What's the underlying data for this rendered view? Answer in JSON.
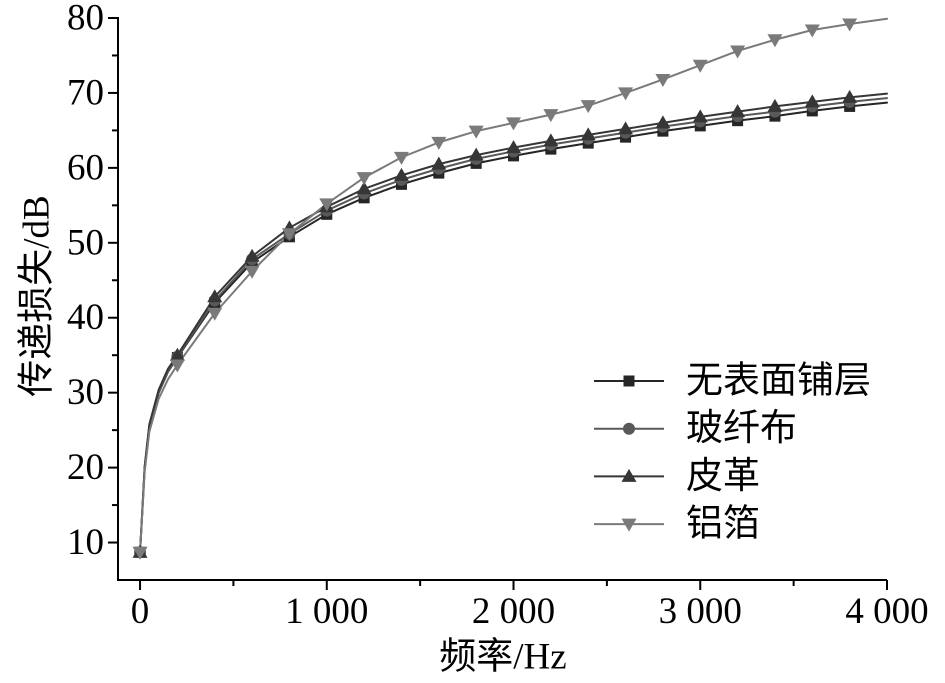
{
  "chart_data": {
    "type": "line",
    "xlabel": "频率/Hz",
    "ylabel": "传递损失/dB",
    "xlim": [
      -118,
      4000
    ],
    "ylim": [
      5,
      80
    ],
    "grid": false,
    "legend": "bottom-right",
    "x_ticks": {
      "values": [
        0,
        1000,
        2000,
        3000,
        4000
      ],
      "labels": [
        "0",
        "1 000",
        "2 000",
        "3 000",
        "4 000"
      ]
    },
    "y_ticks": {
      "values": [
        10,
        20,
        30,
        40,
        50,
        60,
        70,
        80
      ],
      "labels": [
        "10",
        "20",
        "30",
        "40",
        "50",
        "60",
        "70",
        "80"
      ]
    },
    "x": [
      0,
      25,
      50,
      100,
      150,
      200,
      400,
      600,
      800,
      1000,
      1200,
      1400,
      1600,
      1800,
      2000,
      2200,
      2400,
      2600,
      2800,
      3000,
      3200,
      3400,
      3600,
      3800,
      4000
    ],
    "series": [
      {
        "name": "无表面铺层",
        "marker": "square",
        "color": "#262626",
        "values": [
          8.7,
          20.0,
          25.5,
          30.0,
          32.8,
          34.7,
          42.0,
          47.4,
          50.8,
          53.8,
          56.0,
          57.8,
          59.3,
          60.6,
          61.6,
          62.5,
          63.3,
          64.1,
          64.9,
          65.6,
          66.3,
          66.9,
          67.6,
          68.2,
          68.7
        ]
      },
      {
        "name": "玻纤布",
        "marker": "circle",
        "color": "#595959",
        "values": [
          8.7,
          20.0,
          25.6,
          30.1,
          32.9,
          34.8,
          42.3,
          47.8,
          51.2,
          54.3,
          56.6,
          58.4,
          59.9,
          61.2,
          62.2,
          63.1,
          63.9,
          64.7,
          65.5,
          66.2,
          66.9,
          67.5,
          68.2,
          68.8,
          69.3
        ]
      },
      {
        "name": "皮革",
        "marker": "triangle-up",
        "color": "#363636",
        "values": [
          8.7,
          20.2,
          25.8,
          30.4,
          33.2,
          35.0,
          42.8,
          48.2,
          52.0,
          54.8,
          57.2,
          59.0,
          60.5,
          61.7,
          62.7,
          63.6,
          64.4,
          65.2,
          66.0,
          66.8,
          67.5,
          68.2,
          68.8,
          69.4,
          69.9
        ]
      },
      {
        "name": "铝箔",
        "marker": "triangle-down",
        "color": "#7a7a7a",
        "values": [
          8.7,
          19.5,
          24.8,
          29.2,
          31.8,
          33.7,
          40.6,
          46.2,
          51.2,
          55.2,
          58.7,
          61.4,
          63.4,
          64.9,
          66.0,
          67.1,
          68.3,
          70.0,
          71.8,
          73.7,
          75.6,
          77.1,
          78.4,
          79.2,
          79.9
        ]
      }
    ]
  }
}
